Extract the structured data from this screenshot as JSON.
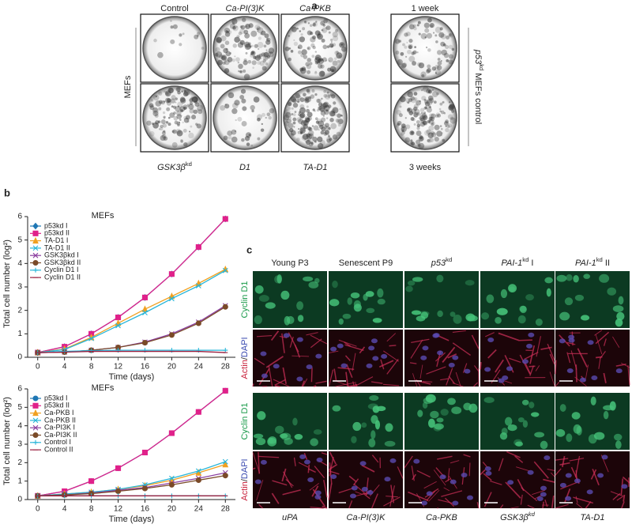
{
  "panel_a": {
    "label": "a",
    "columns": [
      [
        {
          "text": "Control"
        }
      ],
      [
        {
          "text": "Ca-PI(3)K",
          "style": "italic"
        }
      ],
      [
        {
          "text": "Ca-PKB",
          "style": "italic"
        }
      ]
    ],
    "bottom": [
      [
        {
          "text": "GSK3β",
          "style": "italic"
        },
        {
          "text": "kd",
          "style": "sup"
        }
      ],
      [
        {
          "text": "D1",
          "style": "italic"
        }
      ],
      [
        {
          "text": "TA-D1",
          "style": "italic"
        }
      ]
    ],
    "row_label": "MEFs",
    "right_top": "1 week",
    "right_bottom": "3 weeks",
    "right_label": [
      {
        "text": "p53",
        "style": "italic"
      },
      {
        "text": "kd",
        "style": "sup"
      },
      {
        "text": " MEFs control"
      }
    ]
  },
  "panel_b": {
    "label": "b"
  },
  "chart_data": [
    {
      "type": "line",
      "title": "MEFs",
      "x_label": "Time (days)",
      "y_label": "Total cell number (log²)",
      "x": [
        0,
        4,
        8,
        12,
        16,
        20,
        24,
        28
      ],
      "xlim": [
        -1.5,
        29.5
      ],
      "xticks": [
        0,
        4,
        8,
        12,
        16,
        20,
        24,
        28
      ],
      "ylim": [
        0,
        6
      ],
      "yticks": [
        0,
        1,
        2,
        3,
        4,
        5,
        6
      ],
      "legend": "upper left",
      "series": [
        {
          "name": "p53kd I",
          "color": "#1f77b4",
          "marker": "diamond",
          "values": [
            0.2,
            0.45,
            1.0,
            1.7,
            2.55,
            3.55,
            4.7,
            5.9
          ]
        },
        {
          "name": "p53kd II",
          "color": "#e0218a",
          "marker": "square",
          "values": [
            0.2,
            0.45,
            1.0,
            1.7,
            2.55,
            3.55,
            4.7,
            5.9
          ]
        },
        {
          "name": "TA-D1 I",
          "color": "#f0a020",
          "marker": "triangle",
          "values": [
            0.2,
            0.35,
            0.85,
            1.45,
            2.05,
            2.6,
            3.15,
            3.75
          ]
        },
        {
          "name": "TA-D1 II",
          "color": "#27b5d8",
          "marker": "x",
          "values": [
            0.2,
            0.33,
            0.8,
            1.35,
            1.9,
            2.5,
            3.05,
            3.7
          ]
        },
        {
          "name": "GSK3βkd I",
          "color": "#8a3fa0",
          "marker": "x",
          "values": [
            0.2,
            0.22,
            0.3,
            0.42,
            0.65,
            1.0,
            1.5,
            2.2
          ]
        },
        {
          "name": "GSK3βkd II",
          "color": "#7a4a28",
          "marker": "circle",
          "values": [
            0.2,
            0.22,
            0.3,
            0.42,
            0.62,
            0.95,
            1.45,
            2.15
          ]
        },
        {
          "name": "Cyclin D1 I",
          "color": "#27b5d8",
          "marker": "plus",
          "values": [
            0.2,
            0.25,
            0.28,
            0.3,
            0.3,
            0.3,
            0.3,
            0.3
          ]
        },
        {
          "name": "Cyclin D1 II",
          "color": "#9a2040",
          "marker": "dash",
          "values": [
            0.2,
            0.22,
            0.25,
            0.25,
            0.25,
            0.25,
            0.25,
            0.2
          ]
        }
      ]
    },
    {
      "type": "line",
      "title": "MEFs",
      "x_label": "Time (days)",
      "y_label": "Total cell number (log²)",
      "x": [
        0,
        4,
        8,
        12,
        16,
        20,
        24,
        28
      ],
      "xlim": [
        -1.5,
        29.5
      ],
      "xticks": [
        0,
        4,
        8,
        12,
        16,
        20,
        24,
        28
      ],
      "ylim": [
        0,
        6
      ],
      "yticks": [
        0,
        1,
        2,
        3,
        4,
        5,
        6
      ],
      "legend": "upper left",
      "series": [
        {
          "name": "p53kd I",
          "color": "#1f77b4",
          "marker": "circle",
          "values": [
            0.2,
            0.45,
            1.0,
            1.7,
            2.55,
            3.6,
            4.75,
            5.9
          ]
        },
        {
          "name": "p53kd II",
          "color": "#e0218a",
          "marker": "square",
          "values": [
            0.2,
            0.45,
            1.0,
            1.7,
            2.55,
            3.6,
            4.75,
            5.9
          ]
        },
        {
          "name": "Ca-PKB I",
          "color": "#f0a020",
          "marker": "triangle",
          "values": [
            0.2,
            0.3,
            0.4,
            0.55,
            0.75,
            1.05,
            1.45,
            1.9
          ]
        },
        {
          "name": "Ca-PKB II",
          "color": "#27b5d8",
          "marker": "x",
          "values": [
            0.2,
            0.3,
            0.4,
            0.55,
            0.8,
            1.15,
            1.55,
            2.05
          ]
        },
        {
          "name": "Ca-PI3K I",
          "color": "#8a3fa0",
          "marker": "x",
          "values": [
            0.2,
            0.25,
            0.35,
            0.5,
            0.65,
            0.9,
            1.15,
            1.45
          ]
        },
        {
          "name": "Ca-PI3K II",
          "color": "#7a4a28",
          "marker": "circle",
          "values": [
            0.2,
            0.25,
            0.32,
            0.45,
            0.6,
            0.8,
            1.05,
            1.3
          ]
        },
        {
          "name": "Control I",
          "color": "#27b5d8",
          "marker": "plus",
          "values": [
            0.2,
            0.2,
            0.2,
            0.2,
            0.2,
            0.2,
            0.2,
            0.2
          ]
        },
        {
          "name": "Control II",
          "color": "#9a2040",
          "marker": "dash",
          "values": [
            0.2,
            0.2,
            0.2,
            0.2,
            0.2,
            0.2,
            0.2,
            0.2
          ]
        }
      ]
    }
  ],
  "panel_c": {
    "label": "c",
    "columns": [
      [
        {
          "text": "Young P3"
        }
      ],
      [
        {
          "text": "Senescent P9"
        }
      ],
      [
        {
          "text": "p53",
          "style": "italic"
        },
        {
          "text": "kd",
          "style": "sup"
        }
      ],
      [
        {
          "text": "PAI-1",
          "style": "italic"
        },
        {
          "text": "kd",
          "style": "sup"
        },
        {
          "text": " I"
        }
      ],
      [
        {
          "text": "PAI-1",
          "style": "italic"
        },
        {
          "text": "kd",
          "style": "sup"
        },
        {
          "text": " II"
        }
      ]
    ],
    "bottom": [
      [
        {
          "text": "uPA",
          "style": "italic"
        }
      ],
      [
        {
          "text": "Ca-PI(3)K",
          "style": "italic"
        }
      ],
      [
        {
          "text": "Ca-PKB",
          "style": "italic"
        }
      ],
      [
        {
          "text": "GSK3β",
          "style": "italic"
        },
        {
          "text": "kd",
          "style": "sup"
        }
      ],
      [
        {
          "text": "TA-D1",
          "style": "italic"
        }
      ]
    ],
    "row_labels": [
      [
        {
          "text": "Cyclin D1",
          "color": "#1a9a4a"
        }
      ],
      [
        {
          "text": "Actin",
          "color": "#c8203a"
        },
        {
          "text": "/"
        },
        {
          "text": "DAPI",
          "color": "#3a4ab0"
        }
      ]
    ]
  }
}
